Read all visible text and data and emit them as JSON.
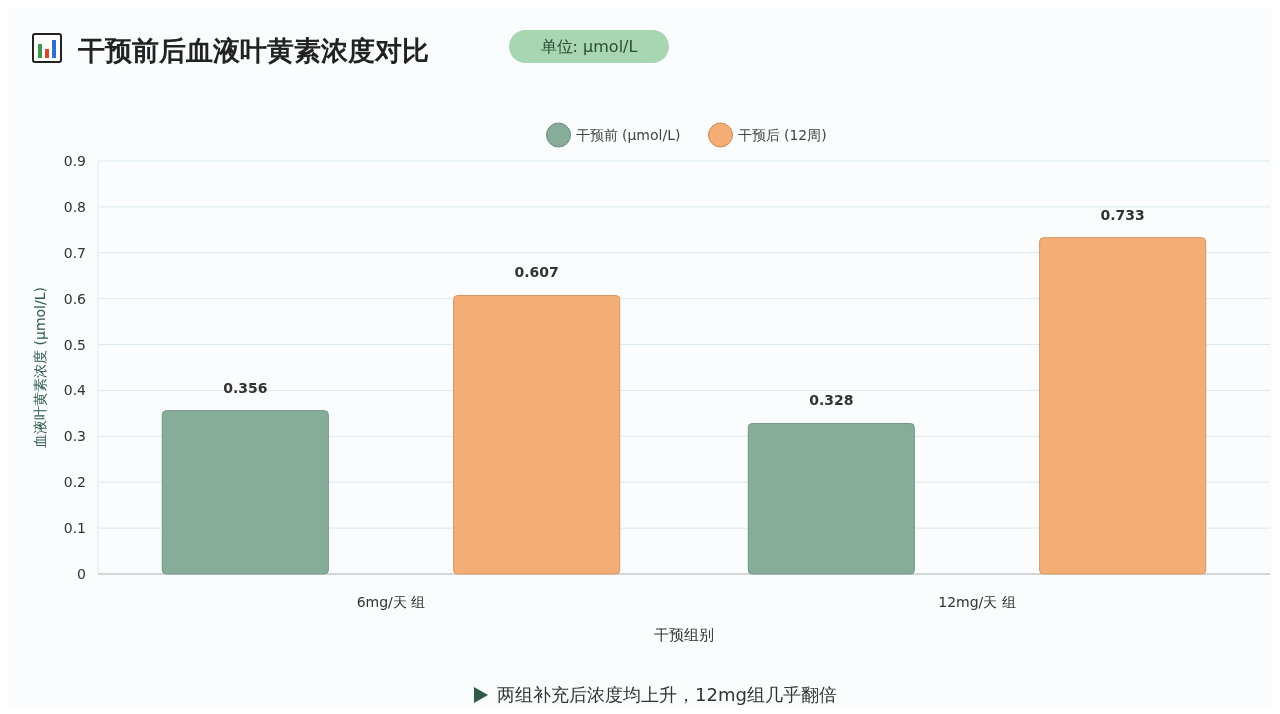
{
  "chart_data": {
    "type": "bar",
    "title": "干预前后血液叶黄素浓度对比",
    "subtitle": "单位: μmol/L",
    "xlabel": "干预组别",
    "ylabel": "血液叶黄素浓度 (μmol/L)",
    "categories": [
      "6mg/天 组",
      "12mg/天 组"
    ],
    "series": [
      {
        "name": "干预前 (μmol/L)",
        "color": "#86ad99",
        "values": [
          0.356,
          0.328
        ]
      },
      {
        "name": "干预后 (12周)",
        "color": "#f4ad75",
        "values": [
          0.607,
          0.733
        ]
      }
    ],
    "ylim": [
      0,
      0.9
    ],
    "yticks": [
      0,
      0.1,
      0.2,
      0.3,
      0.4,
      0.5,
      0.6,
      0.7,
      0.8,
      0.9
    ],
    "grid": "y",
    "legend": "top",
    "data_labels": true,
    "annotations": [
      "两组补充后浓度均上升，12mg组几乎翻倍"
    ]
  }
}
